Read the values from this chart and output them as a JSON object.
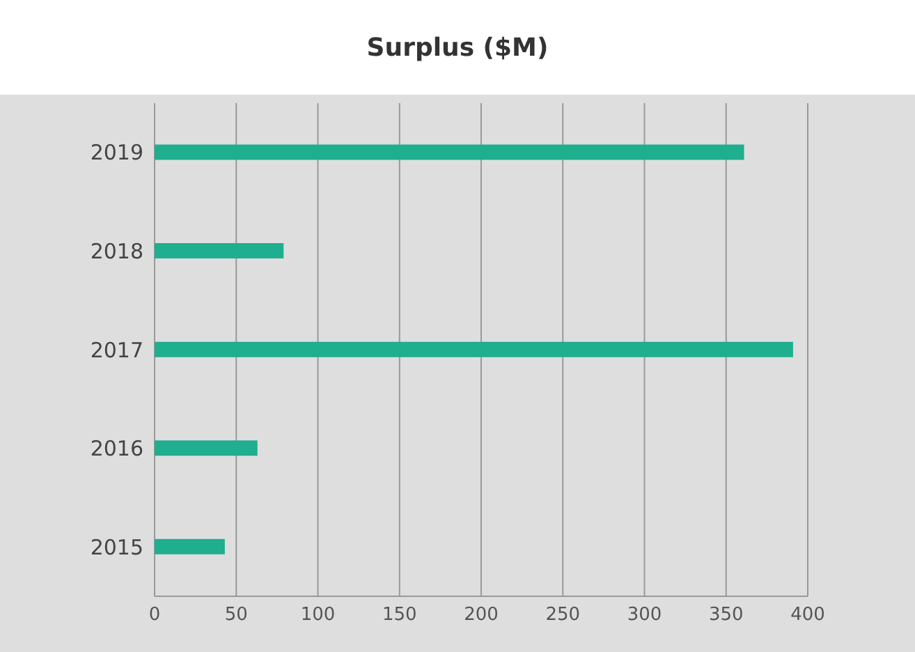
{
  "chart_data": {
    "type": "bar",
    "orientation": "horizontal",
    "title": "Surplus ($M)",
    "categories": [
      "2019",
      "2018",
      "2017",
      "2016",
      "2015"
    ],
    "values": [
      361,
      79,
      391,
      63,
      43
    ],
    "color": "#1fae8e",
    "xlim": [
      0,
      400
    ],
    "xticks": [
      0,
      50,
      100,
      150,
      200,
      250,
      300,
      350,
      400
    ],
    "grid": "x",
    "legend": false
  }
}
